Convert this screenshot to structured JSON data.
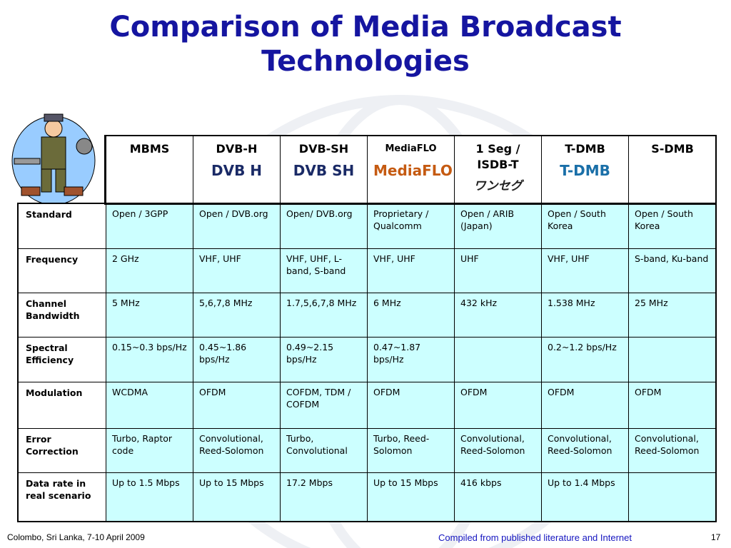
{
  "title": "Comparison of Media Broadcast Technologies",
  "table": {
    "header": [
      {
        "name": "MBMS"
      },
      {
        "name": "DVB-H",
        "logo": "DVB H"
      },
      {
        "name": "DVB-SH",
        "logo": "DVB SH"
      },
      {
        "name": "MediaFLO",
        "logo": "MediaFLO"
      },
      {
        "name": "1 Seg / ISDB-T",
        "logo": "ワンセグ"
      },
      {
        "name": "T-DMB",
        "logo": "T-DMB"
      },
      {
        "name": "S-DMB"
      }
    ],
    "rows": [
      [
        "Standard",
        "Open / 3GPP",
        "Open / DVB.org",
        "Open/ DVB.org",
        "Proprietary / Qualcomm",
        "Open / ARIB (Japan)",
        "Open / South Korea",
        "Open / South Korea"
      ],
      [
        "Frequency",
        "2 GHz",
        "VHF, UHF",
        "VHF, UHF, L-band, S-band",
        "VHF, UHF",
        "UHF",
        "VHF, UHF",
        "S-band,  Ku-band"
      ],
      [
        "Channel Bandwidth",
        "5 MHz",
        "5,6,7,8 MHz",
        "1.7,5,6,7,8 MHz",
        "6 MHz",
        "432 kHz",
        "1.538 MHz",
        "25 MHz"
      ],
      [
        "Spectral Efficiency",
        "0.15~0.3 bps/Hz",
        "0.45~1.86 bps/Hz",
        "0.49~2.15 bps/Hz",
        "0.47~1.87 bps/Hz",
        null,
        "0.2~1.2 bps/Hz",
        null
      ],
      [
        "Modulation",
        "WCDMA",
        "OFDM",
        "COFDM, TDM / COFDM",
        "OFDM",
        "OFDM",
        "OFDM",
        "OFDM"
      ],
      [
        "Error Correction",
        "Turbo, Raptor code",
        "Convolutional, Reed-Solomon",
        "Turbo, Convolutional",
        "Turbo, Reed-Solomon",
        "Convolutional, Reed-Solomon",
        "Convolutional, Reed-Solomon",
        "Convolutional, Reed-Solomon"
      ],
      [
        "Data rate in real scenario",
        "Up to 1.5 Mbps",
        "Up to 15 Mbps",
        "17.2 Mbps",
        "Up to 15 Mbps",
        "416 kbps",
        "Up to 1.4 Mbps",
        null
      ]
    ]
  },
  "footer": {
    "left": "Colombo, Sri Lanka, 7-10 April 2009",
    "center": "Compiled from published literature and Internet",
    "page": "17"
  }
}
